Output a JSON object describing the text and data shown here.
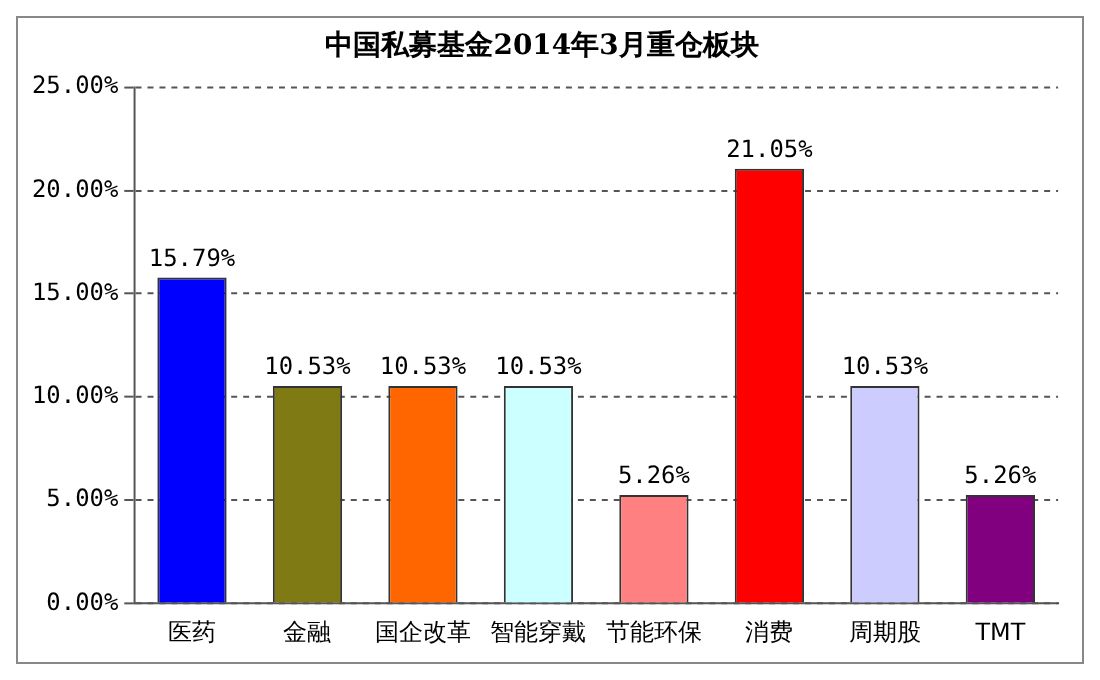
{
  "chart_data": {
    "type": "bar",
    "title": "中国私募基金2014年3月重仓板块",
    "categories": [
      "医药",
      "金融",
      "国企改革",
      "智能穿戴",
      "节能环保",
      "消费",
      "周期股",
      "TMT"
    ],
    "values": [
      15.79,
      10.53,
      10.53,
      10.53,
      5.26,
      21.05,
      10.53,
      5.26
    ],
    "colors": [
      "#0000ff",
      "#807a14",
      "#ff6600",
      "#ccffff",
      "#ff8080",
      "#ff0000",
      "#ccccff",
      "#800080"
    ],
    "value_labels": [
      "15.79%",
      "10.53%",
      "10.53%",
      "10.53%",
      "5.26%",
      "21.05%",
      "10.53%",
      "5.26%"
    ],
    "ylim": [
      0,
      25
    ],
    "yticks": [
      {
        "value": 0,
        "label": "0.00%"
      },
      {
        "value": 5,
        "label": "5.00%"
      },
      {
        "value": 10,
        "label": "10.00%"
      },
      {
        "value": 15,
        "label": "15.00%"
      },
      {
        "value": 20,
        "label": "20.00%"
      },
      {
        "value": 25,
        "label": "25.00%"
      }
    ],
    "grid": "y",
    "legend": false
  }
}
